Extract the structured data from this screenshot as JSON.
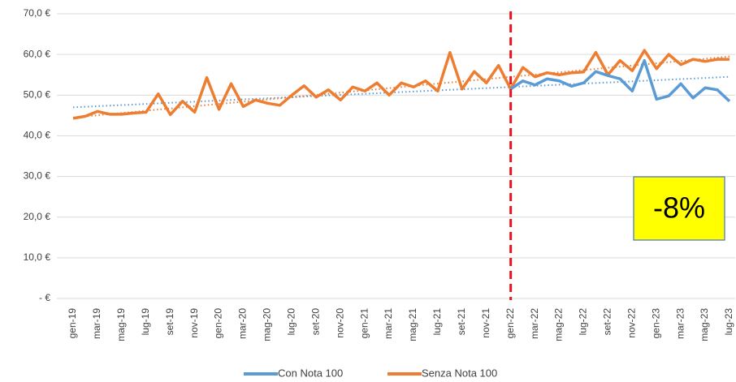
{
  "chart_data": {
    "type": "line",
    "categories": [
      "gen-19",
      null,
      "mar-19",
      null,
      "mag-19",
      null,
      "lug-19",
      null,
      "set-19",
      null,
      "nov-19",
      null,
      "gen-20",
      null,
      "mar-20",
      null,
      "mag-20",
      null,
      "lug-20",
      null,
      "set-20",
      null,
      "nov-20",
      null,
      "gen-21",
      null,
      "mar-21",
      null,
      "mag-21",
      null,
      "lug-21",
      null,
      "set-21",
      null,
      "nov-21",
      null,
      "gen-22",
      null,
      "mar-22",
      null,
      "mag-22",
      null,
      "lug-22",
      null,
      "set-22",
      null,
      "nov-22",
      null,
      "gen-23",
      null,
      "mar-23",
      null,
      "mag-23",
      null,
      "lug-23"
    ],
    "series": [
      {
        "name": "Con Nota 100",
        "color": "#5b9bd5",
        "values": [
          null,
          null,
          null,
          null,
          null,
          null,
          null,
          null,
          null,
          null,
          null,
          null,
          null,
          null,
          null,
          null,
          null,
          null,
          null,
          null,
          null,
          null,
          null,
          null,
          null,
          null,
          null,
          null,
          null,
          null,
          null,
          null,
          null,
          null,
          null,
          null,
          51.5,
          53.5,
          52.5,
          54.0,
          53.5,
          52.2,
          53.0,
          55.8,
          54.8,
          54.0,
          51.0,
          58.5,
          49.0,
          49.8,
          52.8,
          49.3,
          51.8,
          51.3,
          48.5
        ],
        "trend": [
          47.0,
          54.5
        ]
      },
      {
        "name": "Senza Nota 100",
        "color": "#ed7d31",
        "values": [
          44.3,
          44.8,
          46.0,
          45.3,
          45.3,
          45.6,
          45.8,
          50.3,
          45.2,
          48.5,
          45.8,
          54.3,
          46.5,
          52.8,
          47.2,
          48.8,
          48.0,
          47.5,
          50.0,
          52.3,
          49.5,
          51.3,
          48.8,
          52.0,
          51.0,
          53.0,
          50.0,
          53.0,
          52.0,
          53.5,
          51.0,
          60.5,
          51.5,
          55.8,
          53.0,
          57.3,
          51.5,
          56.8,
          54.5,
          55.5,
          55.0,
          55.5,
          55.7,
          60.5,
          55.0,
          58.5,
          56.0,
          61.0,
          56.5,
          60.0,
          57.5,
          58.8,
          58.3,
          58.8,
          58.8
        ],
        "trend": [
          44.5,
          59.5
        ]
      }
    ],
    "ylim": [
      0,
      70
    ],
    "yticks": [
      {
        "value": 0,
        "label": "-  €"
      },
      {
        "value": 10,
        "label": "10,0 €"
      },
      {
        "value": 20,
        "label": "20,0 €"
      },
      {
        "value": 30,
        "label": "30,0 €"
      },
      {
        "value": 40,
        "label": "40,0 €"
      },
      {
        "value": 50,
        "label": "50,0 €"
      },
      {
        "value": 60,
        "label": "60,0 €"
      },
      {
        "value": 70,
        "label": "70,0 €"
      }
    ],
    "grid": true,
    "vline": {
      "category": "gen-22",
      "color": "#e8141b"
    },
    "annotation": "-8%",
    "legend": "bottom"
  }
}
